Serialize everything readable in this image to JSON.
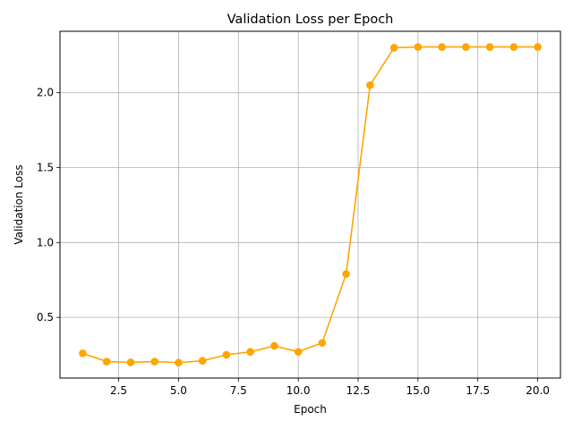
{
  "chart_data": {
    "type": "line",
    "title": "Validation Loss per Epoch",
    "xlabel": "Epoch",
    "ylabel": "Validation Loss",
    "xlim": [
      0.05,
      20.95
    ],
    "ylim": [
      0.095,
      2.41
    ],
    "grid": true,
    "line_color": "#FFA500",
    "grid_color": "#b0b0b0",
    "x_ticks": [
      2.5,
      5.0,
      7.5,
      10.0,
      12.5,
      15.0,
      17.5,
      20.0
    ],
    "x_tick_labels": [
      "2.5",
      "5.0",
      "7.5",
      "10.0",
      "12.5",
      "15.0",
      "17.5",
      "20.0"
    ],
    "y_ticks": [
      0.5,
      1.0,
      1.5,
      2.0
    ],
    "y_tick_labels": [
      "0.5",
      "1.0",
      "1.5",
      "2.0"
    ],
    "series": [
      {
        "x": [
          1,
          2,
          3,
          4,
          5,
          6,
          7,
          8,
          9,
          10,
          11,
          12,
          13,
          14,
          15,
          16,
          17,
          18,
          19,
          20
        ],
        "y": [
          0.26,
          0.205,
          0.2,
          0.205,
          0.198,
          0.21,
          0.25,
          0.27,
          0.31,
          0.27,
          0.33,
          0.79,
          2.05,
          2.3,
          2.305,
          2.305,
          2.305,
          2.305,
          2.305,
          2.305
        ]
      }
    ]
  }
}
